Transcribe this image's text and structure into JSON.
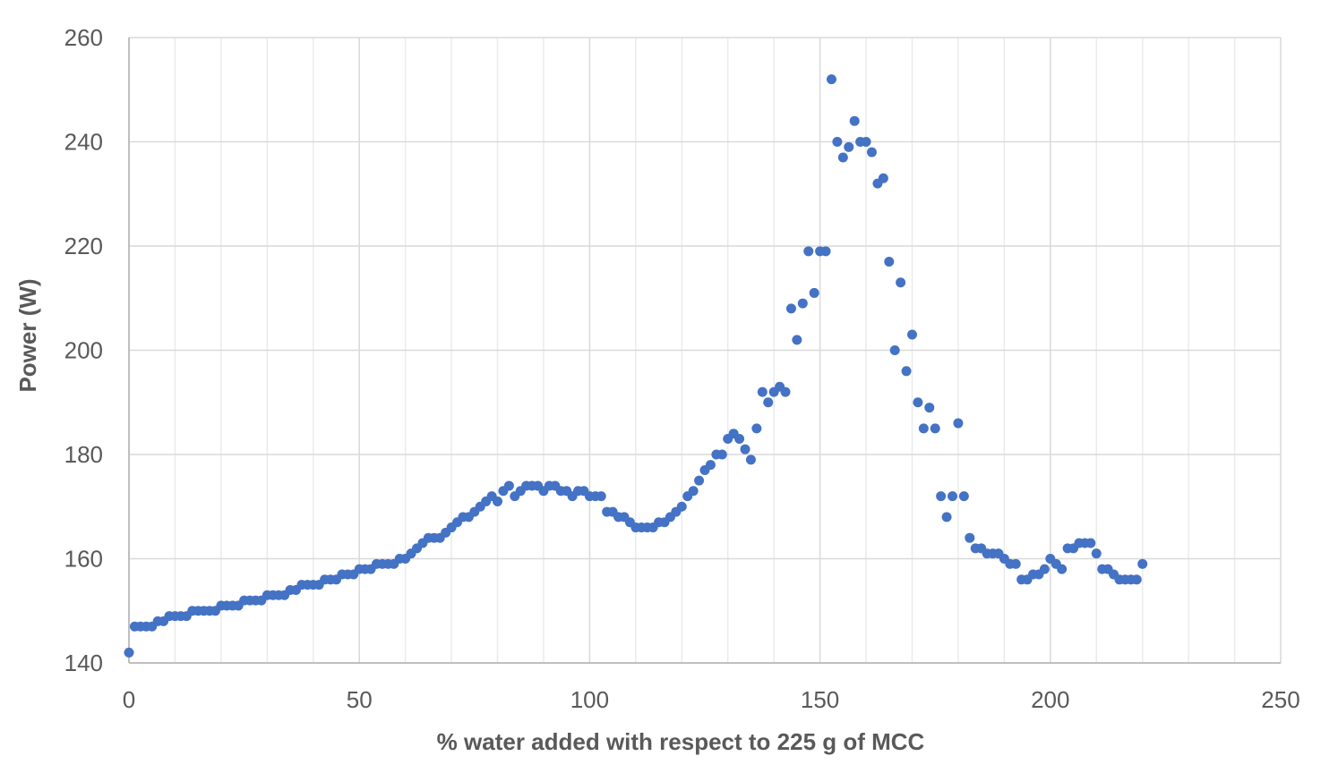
{
  "chart_data": {
    "type": "scatter",
    "title": "",
    "xlabel": "% water added with respect to 225 g of MCC",
    "ylabel": "Power (W)",
    "xlim": [
      0,
      250
    ],
    "ylim": [
      140,
      260
    ],
    "x_ticks": [
      0,
      50,
      100,
      150,
      200,
      250
    ],
    "y_ticks": [
      140,
      160,
      180,
      200,
      220,
      240,
      260
    ],
    "x_minor_grid_step": 10,
    "grid": true,
    "legend": "none",
    "marker_color": "#4472C4",
    "series": [
      {
        "x": [
          0,
          1.25,
          2.5,
          3.75,
          5,
          6.25,
          7.5,
          8.75,
          10,
          11.25,
          12.5,
          13.75,
          15,
          16.25,
          17.5,
          18.75,
          20,
          21.25,
          22.5,
          23.75,
          25,
          26.25,
          27.5,
          28.75,
          30,
          31.25,
          32.5,
          33.75,
          35,
          36.25,
          37.5,
          38.75,
          40,
          41.25,
          42.5,
          43.75,
          45,
          46.25,
          47.5,
          48.75,
          50,
          51.25,
          52.5,
          53.75,
          55,
          56.25,
          57.5,
          58.75,
          60,
          61.25,
          62.5,
          63.75,
          65,
          66.25,
          67.5,
          68.75,
          70,
          71.25,
          72.5,
          73.75,
          75,
          76.25,
          77.5,
          78.75,
          80,
          81.25,
          82.5,
          83.75,
          85,
          86.25,
          87.5,
          88.75,
          90,
          91.25,
          92.5,
          93.75,
          95,
          96.25,
          97.5,
          98.75,
          100,
          101.25,
          102.5,
          103.75,
          105,
          106.25,
          107.5,
          108.75,
          110,
          111.25,
          112.5,
          113.75,
          115,
          116.25,
          117.5,
          118.75,
          120,
          121.25,
          122.5,
          123.75,
          125,
          126.25,
          127.5,
          128.75,
          130,
          131.25,
          132.5,
          133.75,
          135,
          136.25,
          137.5,
          138.75,
          140,
          141.25,
          142.5,
          143.75,
          145,
          146.25,
          147.5,
          148.75,
          150,
          151.25,
          152.5,
          153.75,
          155,
          156.25,
          157.5,
          158.75,
          160,
          161.25,
          162.5,
          163.75,
          165,
          166.25,
          167.5,
          168.75,
          170,
          171.25,
          172.5,
          173.75,
          175,
          176.25,
          177.5,
          178.75,
          180,
          181.25,
          182.5,
          183.75,
          185,
          186.25,
          187.5,
          188.75,
          190,
          191.25,
          192.5,
          193.75,
          195,
          196.25,
          197.5,
          198.75,
          200,
          201.25,
          202.5,
          203.75,
          205,
          206.25,
          207.5,
          208.75,
          210,
          211.25,
          212.5,
          213.75,
          215,
          216.25,
          217.5,
          218.75,
          220
        ],
        "y": [
          142,
          147,
          147,
          147,
          147,
          148,
          148,
          149,
          149,
          149,
          149,
          150,
          150,
          150,
          150,
          150,
          151,
          151,
          151,
          151,
          152,
          152,
          152,
          152,
          153,
          153,
          153,
          153,
          154,
          154,
          155,
          155,
          155,
          155,
          156,
          156,
          156,
          157,
          157,
          157,
          158,
          158,
          158,
          159,
          159,
          159,
          159,
          160,
          160,
          161,
          162,
          163,
          164,
          164,
          164,
          165,
          166,
          167,
          168,
          168,
          169,
          170,
          171,
          172,
          171,
          173,
          174,
          172,
          173,
          174,
          174,
          174,
          173,
          174,
          174,
          173,
          173,
          172,
          173,
          173,
          172,
          172,
          172,
          169,
          169,
          168,
          168,
          167,
          166,
          166,
          166,
          166,
          167,
          167,
          168,
          169,
          170,
          172,
          173,
          175,
          177,
          178,
          180,
          180,
          183,
          184,
          183,
          181,
          179,
          185,
          192,
          190,
          192,
          193,
          192,
          208,
          202,
          209,
          219,
          211,
          219,
          219,
          252,
          240,
          237,
          239,
          244,
          240,
          240,
          238,
          232,
          233,
          217,
          200,
          213,
          196,
          203,
          190,
          185,
          189,
          185,
          172,
          168,
          172,
          186,
          172,
          164,
          162,
          162,
          161,
          161,
          161,
          160,
          159,
          159,
          156,
          156,
          157,
          157,
          158,
          160,
          159,
          158,
          162,
          162,
          163,
          163,
          163,
          161,
          158,
          158,
          157,
          156,
          156,
          156,
          156,
          159
        ]
      }
    ]
  }
}
